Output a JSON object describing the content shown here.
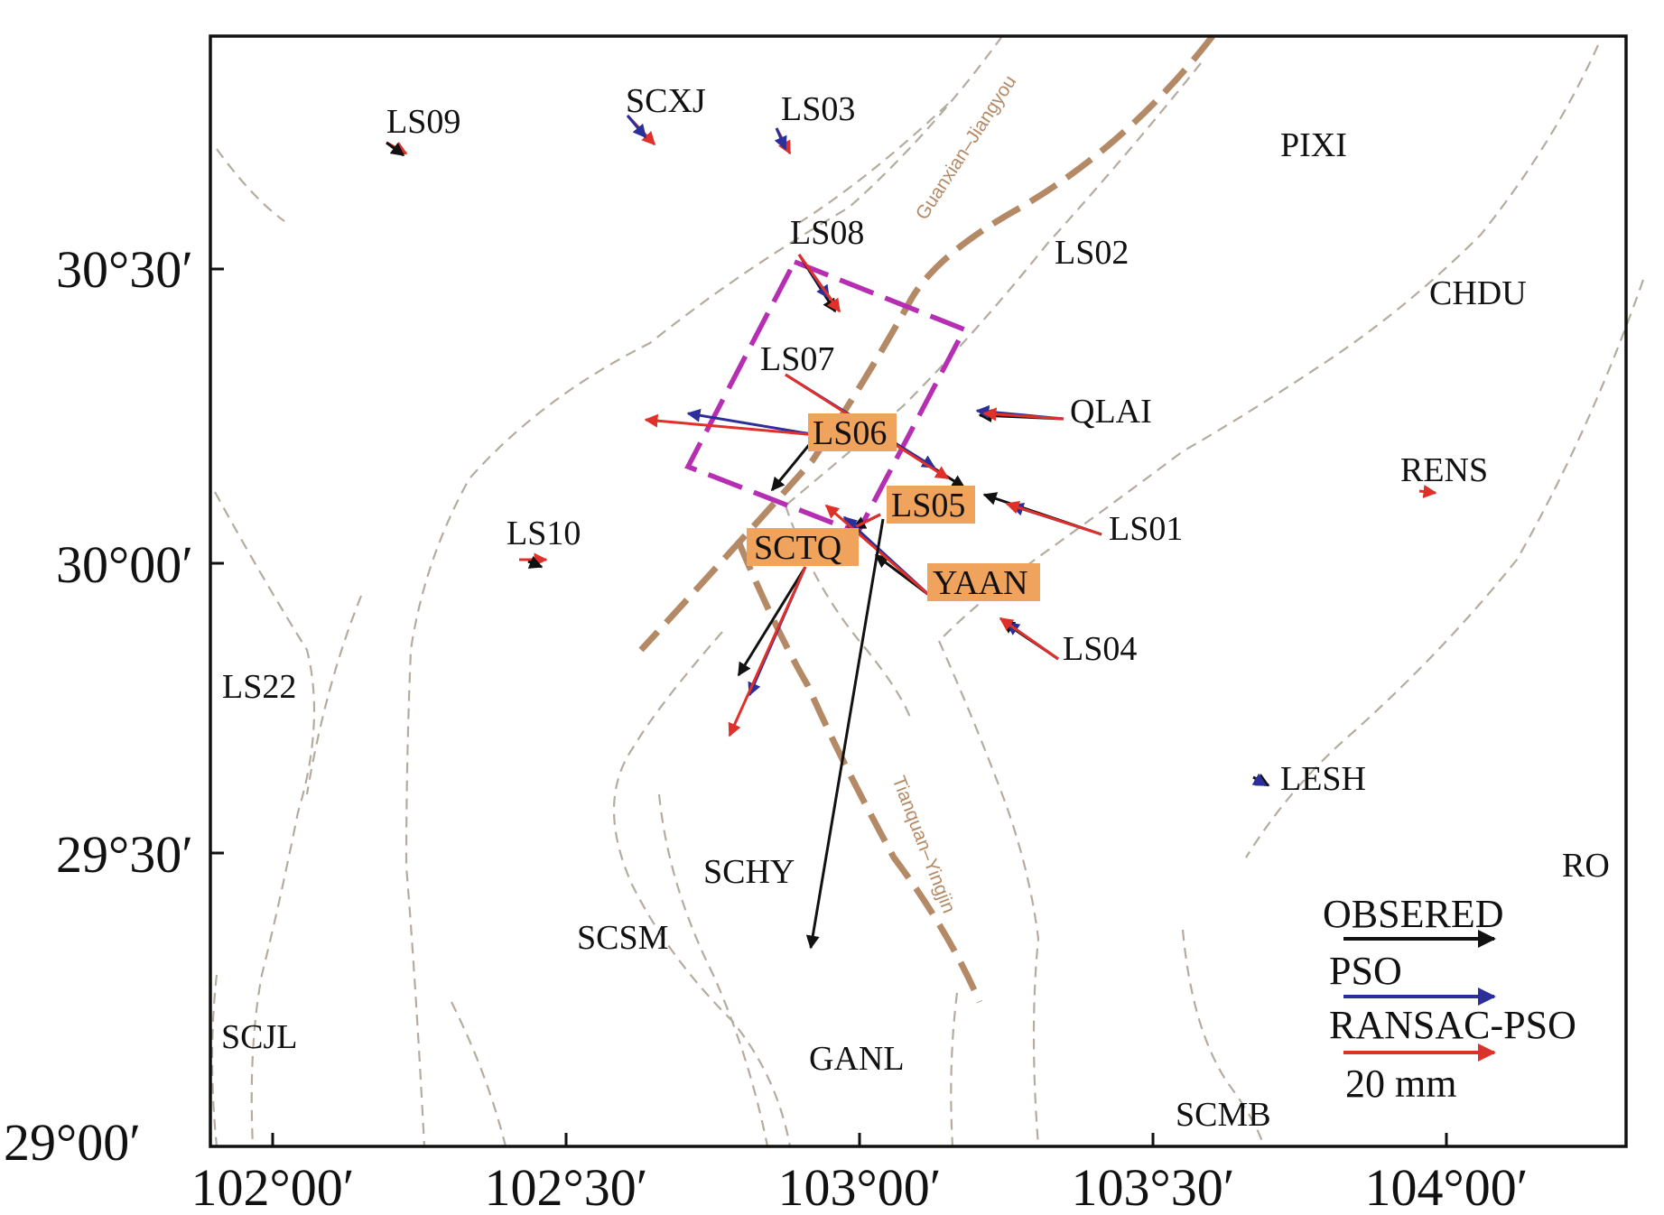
{
  "lat_ticks": [
    "30°30′",
    "30°00′",
    "29°30′",
    "29°00′"
  ],
  "lon_ticks": [
    "102°00′",
    "102°30′",
    "103°00′",
    "103°30′",
    "104°00′"
  ],
  "faults": [
    {
      "name": "Guanxian–Jiangyou"
    },
    {
      "name": "Tianquan–Yingjin"
    }
  ],
  "stations": [
    {
      "name": "LS09"
    },
    {
      "name": "SCXJ"
    },
    {
      "name": "LS03"
    },
    {
      "name": "PIXI"
    },
    {
      "name": "LS08"
    },
    {
      "name": "LS02"
    },
    {
      "name": "CHDU"
    },
    {
      "name": "LS07"
    },
    {
      "name": "QLAI"
    },
    {
      "name": "LS06",
      "highlight": true
    },
    {
      "name": "RENS"
    },
    {
      "name": "LS05",
      "highlight": true
    },
    {
      "name": "LS01"
    },
    {
      "name": "LS10"
    },
    {
      "name": "SCTQ",
      "highlight": true
    },
    {
      "name": "YAAN",
      "highlight": true
    },
    {
      "name": "LS04"
    },
    {
      "name": "LS22"
    },
    {
      "name": "LESH"
    },
    {
      "name": "SCHY"
    },
    {
      "name": "RO"
    },
    {
      "name": "SCSM"
    },
    {
      "name": "SCJL"
    },
    {
      "name": "GANL"
    },
    {
      "name": "SCMB"
    }
  ],
  "legend": {
    "observed": "OBSERED",
    "pso": "PSO",
    "ransac_pso": "RANSAC-PSO",
    "scale": "20 mm"
  },
  "colors": {
    "observed": "#111111",
    "pso": "#2b2f9a",
    "ransac_pso": "#e0302a",
    "fault_major": "#b48a66",
    "fault_minor": "#b5aca0",
    "rupture_box": "#b62fb3",
    "highlight_bg": "#f0a35c"
  }
}
